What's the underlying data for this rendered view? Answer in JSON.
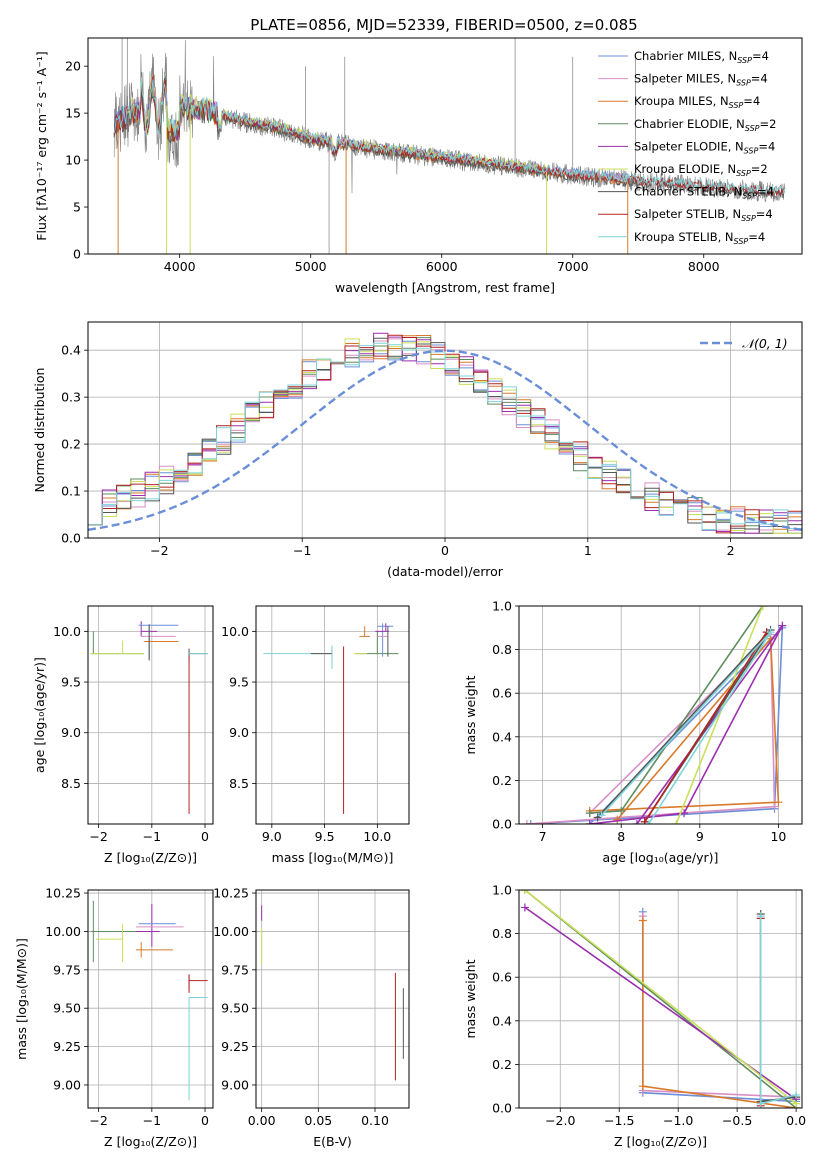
{
  "figure": {
    "title": "PLATE=0856, MJD=52339, FIBERID=0500, z=0.085"
  },
  "series_colors": {
    "Chabrier MILES": "#6b8fd9",
    "Salpeter MILES": "#d98fc4",
    "Kroupa MILES": "#d97a2a",
    "Chabrier ELODIE": "#5e8c5e",
    "Salpeter ELODIE": "#9b2fae",
    "Kroupa ELODIE": "#c9e05a",
    "Chabrier STELIB": "#555555",
    "Salpeter STELIB": "#b22222",
    "Kroupa STELIB": "#7fd3d8",
    "data": "#808080",
    "normal": "#6a8fd8"
  },
  "chart_data": [
    {
      "id": "spectrum",
      "type": "line",
      "xlabel": "wavelength [Angstrom, rest frame]",
      "ylabel": "Flux [fλ10⁻¹⁷ erg cm⁻² s⁻¹ A⁻¹]",
      "xlim": [
        3300,
        8750
      ],
      "ylim": [
        0,
        23
      ],
      "xticks": [
        "4000",
        "5000",
        "6000",
        "7000",
        "8000"
      ],
      "yticks": [
        "0",
        "5",
        "10",
        "15",
        "20"
      ],
      "legend_position": "upper-right",
      "continuum": {
        "x": [
          3500,
          3700,
          3900,
          4000,
          4200,
          4500,
          4800,
          5000,
          5500,
          6000,
          6500,
          7000,
          7500,
          8000,
          8500
        ],
        "y": [
          13.8,
          15.5,
          15.8,
          15.6,
          15.2,
          14.0,
          13.2,
          12.2,
          11.1,
          10.2,
          9.3,
          8.4,
          7.7,
          7.2,
          6.6
        ]
      },
      "series": [
        {
          "name": "Chabrier MILES",
          "nssp": "4"
        },
        {
          "name": "Salpeter MILES",
          "nssp": "4"
        },
        {
          "name": "Kroupa MILES",
          "nssp": "4"
        },
        {
          "name": "Chabrier ELODIE",
          "nssp": "2"
        },
        {
          "name": "Salpeter ELODIE",
          "nssp": "4"
        },
        {
          "name": "Kroupa ELODIE",
          "nssp": "2"
        },
        {
          "name": "Chabrier STELIB",
          "nssp": "4"
        },
        {
          "name": "Salpeter STELIB",
          "nssp": "4"
        },
        {
          "name": "Kroupa STELIB",
          "nssp": "4"
        }
      ]
    },
    {
      "id": "residuals",
      "type": "line",
      "xlabel": "(data-model)/error",
      "ylabel": "Normed distribution",
      "xlim": [
        -2.5,
        2.5
      ],
      "ylim": [
        0,
        0.46
      ],
      "xticks": [
        "−2",
        "−1",
        "0",
        "1",
        "2"
      ],
      "yticks": [
        "0.0",
        "0.1",
        "0.2",
        "0.3",
        "0.4"
      ],
      "grid": true,
      "legend": "𝒩(0, 1)",
      "legend_position": "upper-right"
    },
    {
      "id": "age-vs-Z",
      "type": "scatter",
      "xlabel": "Z [log₁₀(Z/Z⊙)]",
      "ylabel": "age  [log₁₀(age/yr)]",
      "xlim": [
        -2.2,
        0.15
      ],
      "ylim": [
        8.1,
        10.25
      ],
      "xticks": [
        "−2",
        "−1",
        "0"
      ],
      "yticks": [
        "8.5",
        "9.0",
        "9.5",
        "10.0"
      ],
      "grid": true
    },
    {
      "id": "age-vs-mass",
      "type": "scatter",
      "xlabel": "mass [log₁₀(M/M⊙)]",
      "ylabel": "",
      "xlim": [
        8.85,
        10.3
      ],
      "ylim": [
        8.1,
        10.25
      ],
      "xticks": [
        "9.0",
        "9.5",
        "10.0"
      ],
      "yticks": [
        "8.5",
        "9.0",
        "9.5",
        "10.0"
      ],
      "grid": true
    },
    {
      "id": "weight-vs-age",
      "type": "line",
      "xlabel": "age  [log₁₀(age/yr)]",
      "ylabel": "mass weight",
      "xlim": [
        6.7,
        10.3
      ],
      "ylim": [
        0,
        1.0
      ],
      "xticks": [
        "7",
        "8",
        "9",
        "10"
      ],
      "yticks": [
        "0.0",
        "0.2",
        "0.4",
        "0.6",
        "0.8",
        "1.0"
      ],
      "grid": true
    },
    {
      "id": "mass-vs-Z",
      "type": "scatter",
      "xlabel": "Z [log₁₀(Z/Z⊙)]",
      "ylabel": "mass [log₁₀(M/M⊙)]",
      "xlim": [
        -2.2,
        0.15
      ],
      "ylim": [
        8.85,
        10.27
      ],
      "xticks": [
        "−2",
        "−1",
        "0"
      ],
      "yticks": [
        "9.00",
        "9.25",
        "9.50",
        "9.75",
        "10.00",
        "10.25"
      ],
      "grid": true
    },
    {
      "id": "mass-vs-ebv",
      "type": "scatter",
      "xlabel": "E(B-V)",
      "ylabel": "",
      "xlim": [
        -0.005,
        0.13
      ],
      "ylim": [
        8.85,
        10.27
      ],
      "xticks": [
        "0.00",
        "0.05",
        "0.10"
      ],
      "yticks": [
        "9.00",
        "9.25",
        "9.50",
        "9.75",
        "10.00",
        "10.25"
      ],
      "grid": true
    },
    {
      "id": "weight-vs-Z",
      "type": "line",
      "xlabel": "Z [log₁₀(Z/Z⊙)]",
      "ylabel": "mass weight",
      "xlim": [
        -2.35,
        0.05
      ],
      "ylim": [
        0,
        1.0
      ],
      "xticks": [
        "−2.0",
        "−1.5",
        "−1.0",
        "−0.5",
        "0.0"
      ],
      "yticks": [
        "0.0",
        "0.2",
        "0.4",
        "0.6",
        "0.8",
        "1.0"
      ],
      "grid": true
    }
  ]
}
